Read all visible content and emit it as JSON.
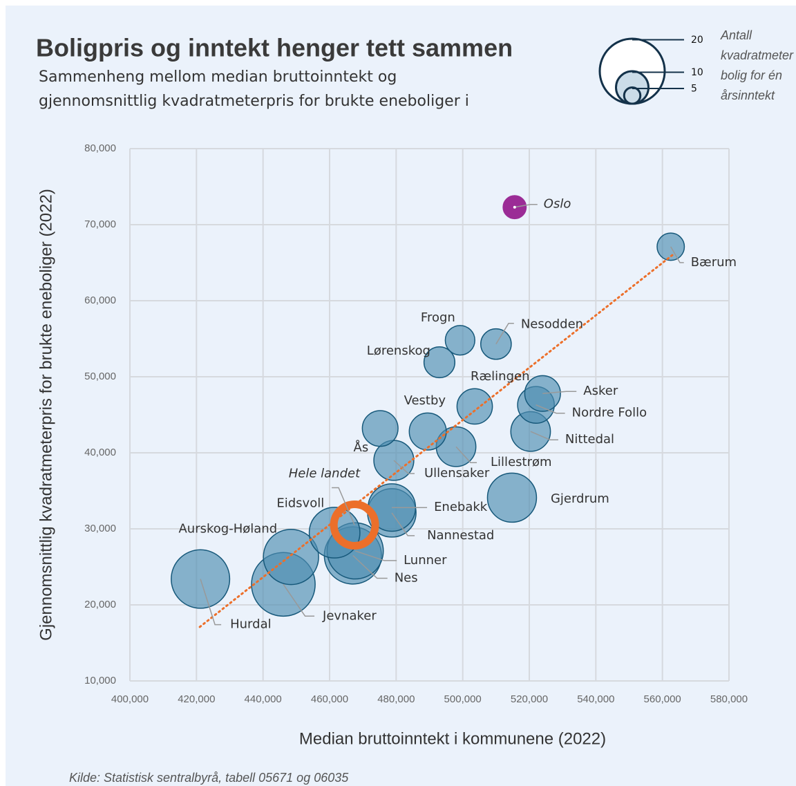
{
  "chart_data": {
    "type": "bubble",
    "title": "Boligpris og inntekt henger tett sammen",
    "subtitle": [
      "Sammenheng mellom median bruttoinntekt og",
      "gjennomsnittlig kvadratmeterpris for brukte eneboliger i"
    ],
    "xlabel": "Median bruttoinntekt i kommunene (2022)",
    "ylabel": "Gjennomsnittlig kvadratmeterpris for brukte eneboliger (2022)",
    "source": "Kilde: Statistisk sentralbyrå, tabell 05671 og 06035",
    "xlim": [
      400000,
      580000
    ],
    "ylim": [
      10000,
      80000
    ],
    "xticks": [
      {
        "value": 400000,
        "label": "400,000"
      },
      {
        "value": 420000,
        "label": "420,000"
      },
      {
        "value": 440000,
        "label": "440,000"
      },
      {
        "value": 460000,
        "label": "460,000"
      },
      {
        "value": 480000,
        "label": "480,000"
      },
      {
        "value": 500000,
        "label": "500,000"
      },
      {
        "value": 520000,
        "label": "520,000"
      },
      {
        "value": 540000,
        "label": "540,000"
      },
      {
        "value": 560000,
        "label": "560,000"
      },
      {
        "value": 580000,
        "label": "580,000"
      }
    ],
    "yticks": [
      {
        "value": 10000,
        "label": "10,000"
      },
      {
        "value": 20000,
        "label": "20,000"
      },
      {
        "value": 30000,
        "label": "30,000"
      },
      {
        "value": 40000,
        "label": "40,000"
      },
      {
        "value": 50000,
        "label": "50,000"
      },
      {
        "value": 60000,
        "label": "60,000"
      },
      {
        "value": 70000,
        "label": "70,000"
      },
      {
        "value": 80000,
        "label": "80,000"
      }
    ],
    "grid": true,
    "color": "#4f8db0",
    "edge_color": "#16587a",
    "points": [
      {
        "label": "Oslo",
        "x": 515600,
        "y": 72300,
        "size": 7.1,
        "color": "#9b2c96"
      },
      {
        "label": "Bærum",
        "x": 562500,
        "y": 67100,
        "size": 8.4
      },
      {
        "label": "Frogn",
        "x": 499200,
        "y": 54800,
        "size": 9.1
      },
      {
        "label": "Nesodden",
        "x": 510000,
        "y": 54300,
        "size": 9.4
      },
      {
        "label": "Lørenskog",
        "x": 493000,
        "y": 51900,
        "size": 9.5
      },
      {
        "label": "Rælingen",
        "x": 503600,
        "y": 46100,
        "size": 10.9
      },
      {
        "label": "Asker",
        "x": 524000,
        "y": 47800,
        "size": 11
      },
      {
        "label": "Nordre Follo",
        "x": 522000,
        "y": 46300,
        "size": 11.3
      },
      {
        "label": "Vestby",
        "x": 489500,
        "y": 42800,
        "size": 11.4
      },
      {
        "label": "Ås",
        "x": 475200,
        "y": 43200,
        "size": 11
      },
      {
        "label": "Ullensaker",
        "x": 479300,
        "y": 39000,
        "size": 12.3
      },
      {
        "label": "Lillestrøm",
        "x": 498000,
        "y": 40800,
        "size": 12.2
      },
      {
        "label": "Nittedal",
        "x": 520400,
        "y": 42800,
        "size": 12.2
      },
      {
        "label": "Gjerdrum",
        "x": 514800,
        "y": 34100,
        "size": 15.1
      },
      {
        "label": "Enebakk",
        "x": 478700,
        "y": 32800,
        "size": 14.6
      },
      {
        "label": "Nannestad",
        "x": 478700,
        "y": 32100,
        "size": 14.9
      },
      {
        "label": "Eidsvoll",
        "x": 461500,
        "y": 29500,
        "size": 15.6
      },
      {
        "label": "Lunner",
        "x": 467700,
        "y": 27100,
        "size": 17.3
      },
      {
        "label": "Nes",
        "x": 467000,
        "y": 26500,
        "size": 17.6
      },
      {
        "label": "Aurskog-Høland",
        "x": 448400,
        "y": 26300,
        "size": 17
      },
      {
        "label": "Jevnaker",
        "x": 446100,
        "y": 22700,
        "size": 19.6
      },
      {
        "label": "Hurdal",
        "x": 421200,
        "y": 23400,
        "size": 18
      },
      {
        "label": "Hele landet",
        "x": 467500,
        "y": 30500,
        "size": 15.3,
        "color": "#ec6f2a",
        "style": "ring"
      }
    ],
    "trendline": {
      "color": "#ec6f2a",
      "x": [
        421000,
        563000
      ],
      "y": [
        17100,
        66000
      ]
    },
    "size_legend": {
      "title": [
        "Antall",
        "kvadratmeter",
        "bolig for én",
        "årsinntekt"
      ],
      "sizes": [
        20,
        10,
        5
      ]
    }
  }
}
